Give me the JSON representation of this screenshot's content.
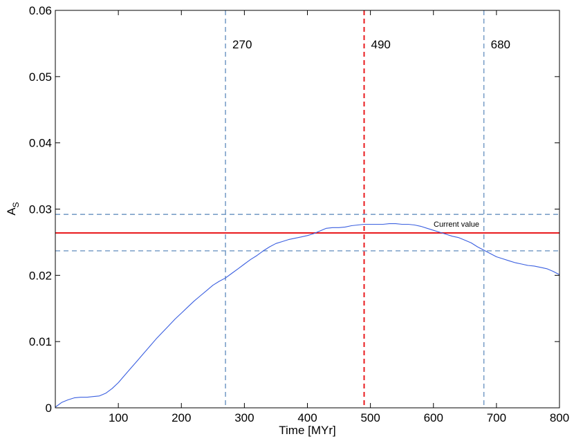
{
  "chart_data": {
    "type": "line",
    "title": "",
    "xlabel": "Time [MYr]",
    "ylabel": "A",
    "ylabel_sub": "S",
    "xlim": [
      0,
      800
    ],
    "ylim": [
      0,
      0.06
    ],
    "x_ticks": [
      100,
      200,
      300,
      400,
      500,
      600,
      700,
      800
    ],
    "x_tick_labels": [
      "100",
      "200",
      "300",
      "400",
      "500",
      "600",
      "700",
      "800"
    ],
    "y_ticks": [
      0,
      0.01,
      0.02,
      0.03,
      0.04,
      0.05,
      0.06
    ],
    "y_tick_labels": [
      "0",
      "0.01",
      "0.02",
      "0.03",
      "0.04",
      "0.05",
      "0.06"
    ],
    "grid": false,
    "series": [
      {
        "color": "#3a5fe0",
        "x": [
          0,
          10,
          20,
          30,
          40,
          50,
          60,
          70,
          80,
          90,
          100,
          110,
          120,
          130,
          140,
          150,
          160,
          170,
          180,
          190,
          200,
          210,
          220,
          230,
          240,
          250,
          260,
          270,
          280,
          290,
          300,
          310,
          320,
          330,
          340,
          350,
          360,
          370,
          380,
          390,
          400,
          410,
          420,
          430,
          440,
          450,
          460,
          470,
          480,
          490,
          500,
          510,
          520,
          530,
          540,
          550,
          560,
          570,
          580,
          590,
          600,
          610,
          620,
          630,
          640,
          650,
          660,
          670,
          680,
          690,
          700,
          710,
          720,
          730,
          740,
          750,
          760,
          770,
          780,
          790,
          800
        ],
        "y": [
          0.0001,
          0.0008,
          0.0012,
          0.0015,
          0.0016,
          0.0016,
          0.0017,
          0.0018,
          0.0022,
          0.0029,
          0.0038,
          0.0049,
          0.006,
          0.0071,
          0.0082,
          0.0093,
          0.0104,
          0.0114,
          0.0124,
          0.0134,
          0.0143,
          0.0152,
          0.0161,
          0.0169,
          0.0177,
          0.0185,
          0.0191,
          0.0196,
          0.0203,
          0.021,
          0.0217,
          0.0224,
          0.023,
          0.0237,
          0.0243,
          0.0248,
          0.0251,
          0.0254,
          0.0256,
          0.0258,
          0.026,
          0.0263,
          0.0267,
          0.0271,
          0.0272,
          0.0272,
          0.0273,
          0.0275,
          0.0276,
          0.0277,
          0.0277,
          0.0277,
          0.0277,
          0.0278,
          0.0278,
          0.0277,
          0.0277,
          0.0276,
          0.0274,
          0.0271,
          0.0268,
          0.0265,
          0.0262,
          0.0259,
          0.0257,
          0.0253,
          0.0249,
          0.0243,
          0.0238,
          0.0233,
          0.0228,
          0.0225,
          0.0222,
          0.0219,
          0.0217,
          0.0215,
          0.0214,
          0.0212,
          0.021,
          0.0206,
          0.0201
        ]
      }
    ],
    "vertical_lines": [
      {
        "x": 270,
        "label": "270",
        "color": "#7a9fc8",
        "style": "dashed"
      },
      {
        "x": 490,
        "label": "490",
        "color": "#e8191c",
        "style": "dashed"
      },
      {
        "x": 680,
        "label": "680",
        "color": "#7a9fc8",
        "style": "dashed"
      }
    ],
    "horizontal_lines": [
      {
        "y": 0.0292,
        "label": "",
        "color": "#7a9fc8",
        "style": "dashed"
      },
      {
        "y": 0.0264,
        "label": "Current value",
        "color": "#e8191c",
        "style": "solid"
      },
      {
        "y": 0.0237,
        "label": "",
        "color": "#7a9fc8",
        "style": "dashed"
      }
    ]
  }
}
